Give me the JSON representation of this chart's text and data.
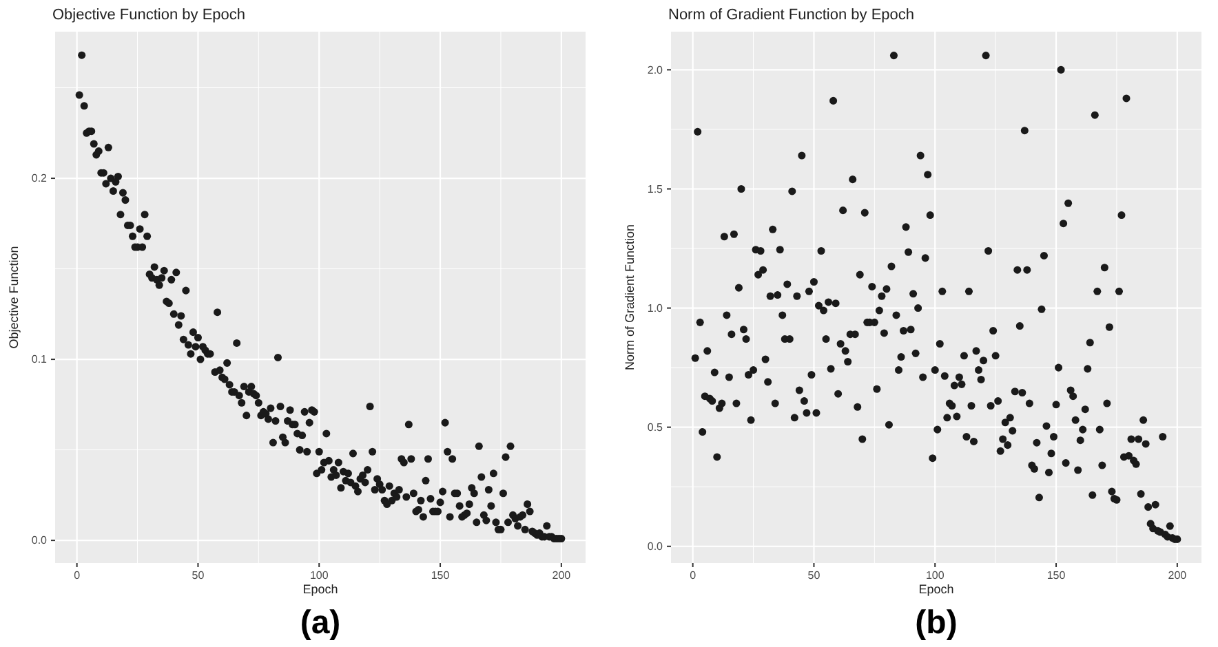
{
  "chart_data": [
    {
      "type": "scatter",
      "title": "Objective Function by Epoch",
      "xlabel": "Epoch",
      "ylabel": "Objective Function",
      "annotations": [
        "(a)"
      ],
      "color": "#1a1a1a",
      "marker": "circle",
      "grid": true,
      "xlim": [
        -9,
        210
      ],
      "xticks": [
        0,
        50,
        100,
        150,
        200
      ],
      "ylim": [
        -0.0125,
        0.281
      ],
      "yticks": [
        {
          "value": 0,
          "label": "0.0"
        },
        {
          "value": 0.1,
          "label": "0.1"
        },
        {
          "value": 0.2,
          "label": "0.2"
        }
      ],
      "x": [
        2,
        1,
        3,
        4,
        5,
        6,
        7,
        8,
        9,
        13,
        10,
        11,
        12,
        14,
        16,
        17,
        15,
        19,
        20,
        18,
        28,
        21,
        22,
        26,
        23,
        29,
        24,
        25,
        27,
        30,
        32,
        31,
        33,
        34,
        35,
        36,
        39,
        41,
        45,
        37,
        38,
        40,
        43,
        42,
        58,
        44,
        48,
        50,
        46,
        49,
        47,
        52,
        53,
        54,
        55,
        51,
        66,
        57,
        59,
        62,
        60,
        61,
        63,
        64,
        65,
        67,
        69,
        71,
        72,
        73,
        74,
        75,
        68,
        70,
        76,
        77,
        78,
        79,
        80,
        83,
        82,
        81,
        84,
        85,
        86,
        87,
        88,
        89,
        90,
        91,
        93,
        94,
        96,
        97,
        98,
        92,
        95,
        100,
        103,
        99,
        101,
        102,
        104,
        106,
        105,
        107,
        108,
        109,
        110,
        111,
        112,
        113,
        114,
        115,
        116,
        117,
        118,
        119,
        120,
        121,
        122,
        123,
        124,
        125,
        126,
        127,
        128,
        129,
        130,
        131,
        132,
        133,
        134,
        135,
        136,
        137,
        138,
        139,
        140,
        141,
        142,
        143,
        144,
        145,
        146,
        147,
        148,
        149,
        150,
        151,
        152,
        153,
        154,
        155,
        156,
        157,
        158,
        159,
        160,
        161,
        162,
        163,
        164,
        165,
        166,
        167,
        168,
        169,
        170,
        171,
        172,
        173,
        174,
        175,
        176,
        177,
        178,
        179,
        180,
        181,
        182,
        183,
        184,
        185,
        186,
        187,
        188,
        189,
        190,
        191,
        192,
        193,
        194,
        195,
        196,
        197,
        198,
        199,
        200
      ],
      "values": [
        0.268,
        0.246,
        0.24,
        0.225,
        0.226,
        0.226,
        0.219,
        0.213,
        0.215,
        0.217,
        0.203,
        0.203,
        0.197,
        0.2,
        0.198,
        0.201,
        0.193,
        0.192,
        0.188,
        0.18,
        0.18,
        0.174,
        0.174,
        0.172,
        0.168,
        0.168,
        0.162,
        0.162,
        0.162,
        0.147,
        0.151,
        0.145,
        0.144,
        0.141,
        0.145,
        0.149,
        0.144,
        0.148,
        0.138,
        0.132,
        0.131,
        0.125,
        0.124,
        0.119,
        0.126,
        0.111,
        0.115,
        0.112,
        0.108,
        0.107,
        0.103,
        0.107,
        0.105,
        0.103,
        0.103,
        0.1,
        0.109,
        0.093,
        0.094,
        0.098,
        0.09,
        0.089,
        0.086,
        0.082,
        0.082,
        0.08,
        0.085,
        0.082,
        0.085,
        0.081,
        0.08,
        0.076,
        0.076,
        0.069,
        0.069,
        0.071,
        0.07,
        0.067,
        0.073,
        0.101,
        0.066,
        0.054,
        0.074,
        0.057,
        0.054,
        0.066,
        0.072,
        0.064,
        0.064,
        0.059,
        0.058,
        0.071,
        0.065,
        0.072,
        0.071,
        0.05,
        0.049,
        0.049,
        0.059,
        0.037,
        0.039,
        0.043,
        0.044,
        0.039,
        0.035,
        0.036,
        0.043,
        0.029,
        0.038,
        0.033,
        0.037,
        0.032,
        0.048,
        0.03,
        0.027,
        0.034,
        0.036,
        0.032,
        0.039,
        0.074,
        0.049,
        0.028,
        0.034,
        0.031,
        0.028,
        0.022,
        0.02,
        0.03,
        0.022,
        0.026,
        0.024,
        0.028,
        0.045,
        0.043,
        0.024,
        0.064,
        0.045,
        0.026,
        0.016,
        0.017,
        0.022,
        0.013,
        0.033,
        0.045,
        0.023,
        0.016,
        0.016,
        0.016,
        0.021,
        0.027,
        0.065,
        0.049,
        0.013,
        0.045,
        0.026,
        0.026,
        0.019,
        0.013,
        0.014,
        0.015,
        0.02,
        0.029,
        0.026,
        0.01,
        0.052,
        0.035,
        0.014,
        0.011,
        0.028,
        0.019,
        0.037,
        0.01,
        0.006,
        0.006,
        0.026,
        0.046,
        0.01,
        0.052,
        0.014,
        0.012,
        0.008,
        0.013,
        0.014,
        0.006,
        0.02,
        0.016,
        0.005,
        0.004,
        0.003,
        0.004,
        0.002,
        0.002,
        0.008,
        0.002,
        0.002,
        0.001,
        0.001,
        0.001,
        0.001
      ]
    },
    {
      "type": "scatter",
      "title": "Norm of Gradient Function by Epoch",
      "xlabel": "Epoch",
      "ylabel": "Norm of Gradient Function",
      "annotations": [
        "(b)"
      ],
      "color": "#1a1a1a",
      "marker": "circle",
      "grid": true,
      "xlim": [
        -9,
        210
      ],
      "xticks": [
        0,
        50,
        100,
        150,
        200
      ],
      "ylim": [
        -0.07,
        2.16
      ],
      "yticks": [
        {
          "value": 0,
          "label": "0.0"
        },
        {
          "value": 0.5,
          "label": "0.5"
        },
        {
          "value": 1,
          "label": "1.0"
        },
        {
          "value": 1.5,
          "label": "1.5"
        },
        {
          "value": 2,
          "label": "2.0"
        }
      ],
      "x": [
        1,
        2,
        3,
        4,
        5,
        6,
        7,
        8,
        9,
        10,
        11,
        12,
        13,
        14,
        15,
        16,
        17,
        18,
        19,
        20,
        21,
        22,
        23,
        24,
        25,
        26,
        27,
        28,
        29,
        30,
        31,
        32,
        33,
        34,
        35,
        36,
        37,
        38,
        39,
        40,
        41,
        42,
        43,
        44,
        45,
        46,
        47,
        48,
        49,
        50,
        51,
        52,
        53,
        54,
        55,
        56,
        57,
        58,
        59,
        60,
        61,
        62,
        63,
        64,
        65,
        67,
        66,
        68,
        69,
        70,
        71,
        72,
        73,
        74,
        75,
        76,
        77,
        78,
        79,
        80,
        81,
        82,
        83,
        84,
        85,
        86,
        87,
        88,
        89,
        90,
        91,
        92,
        93,
        94,
        95,
        96,
        97,
        98,
        99,
        100,
        101,
        102,
        103,
        104,
        105,
        106,
        107,
        108,
        109,
        110,
        111,
        112,
        113,
        114,
        115,
        116,
        117,
        118,
        119,
        120,
        121,
        122,
        123,
        124,
        125,
        126,
        127,
        128,
        129,
        130,
        131,
        132,
        133,
        134,
        135,
        136,
        137,
        138,
        139,
        140,
        141,
        142,
        143,
        144,
        145,
        146,
        147,
        148,
        149,
        150,
        151,
        152,
        153,
        154,
        155,
        156,
        157,
        158,
        159,
        160,
        161,
        162,
        163,
        164,
        165,
        166,
        167,
        168,
        169,
        170,
        171,
        172,
        173,
        174,
        175,
        176,
        177,
        178,
        179,
        180,
        181,
        182,
        183,
        184,
        185,
        186,
        187,
        188,
        189,
        190,
        191,
        192,
        193,
        194,
        195,
        196,
        197,
        198,
        199,
        200
      ],
      "values": [
        0.79,
        1.74,
        0.94,
        0.48,
        0.63,
        0.82,
        0.62,
        0.61,
        0.73,
        0.375,
        0.58,
        0.6,
        1.3,
        0.97,
        0.71,
        0.89,
        1.31,
        0.6,
        1.085,
        1.5,
        0.91,
        0.87,
        0.72,
        0.53,
        0.74,
        1.245,
        1.14,
        1.24,
        1.16,
        0.785,
        0.69,
        1.05,
        1.33,
        0.6,
        1.055,
        1.245,
        0.97,
        0.87,
        1.1,
        0.87,
        1.49,
        0.54,
        1.05,
        0.655,
        1.64,
        0.61,
        0.56,
        1.07,
        0.72,
        1.11,
        0.56,
        1.01,
        1.24,
        0.99,
        0.87,
        1.025,
        0.745,
        1.87,
        1.02,
        0.64,
        0.85,
        1.41,
        0.82,
        0.775,
        0.89,
        0.89,
        1.54,
        0.585,
        1.14,
        0.45,
        1.4,
        0.94,
        0.94,
        1.09,
        0.94,
        0.66,
        0.99,
        1.05,
        0.895,
        1.08,
        0.51,
        1.175,
        2.06,
        0.97,
        0.74,
        0.795,
        0.905,
        1.34,
        1.235,
        0.91,
        1.06,
        0.81,
        1.0,
        1.64,
        0.71,
        1.21,
        1.56,
        1.39,
        0.37,
        0.74,
        0.49,
        0.85,
        1.07,
        0.715,
        0.54,
        0.6,
        0.59,
        0.675,
        0.545,
        0.71,
        0.68,
        0.8,
        0.46,
        1.07,
        0.59,
        0.44,
        0.82,
        0.74,
        0.7,
        0.78,
        2.06,
        1.24,
        0.59,
        0.905,
        0.8,
        0.61,
        0.4,
        0.45,
        0.52,
        0.425,
        0.54,
        0.485,
        0.65,
        1.16,
        0.925,
        0.645,
        1.745,
        1.16,
        0.6,
        0.34,
        0.325,
        0.435,
        0.205,
        0.995,
        1.22,
        0.505,
        0.31,
        0.39,
        0.46,
        0.595,
        0.75,
        2.0,
        1.355,
        0.35,
        1.44,
        0.655,
        0.63,
        0.53,
        0.32,
        0.445,
        0.49,
        0.575,
        0.745,
        0.855,
        0.215,
        1.81,
        1.07,
        0.49,
        0.34,
        1.17,
        0.6,
        0.92,
        0.23,
        0.2,
        0.195,
        1.07,
        1.39,
        0.375,
        1.88,
        0.38,
        0.45,
        0.36,
        0.345,
        0.45,
        0.22,
        0.53,
        0.43,
        0.165,
        0.095,
        0.075,
        0.175,
        0.065,
        0.06,
        0.46,
        0.05,
        0.04,
        0.085,
        0.035,
        0.03,
        0.03
      ]
    }
  ]
}
